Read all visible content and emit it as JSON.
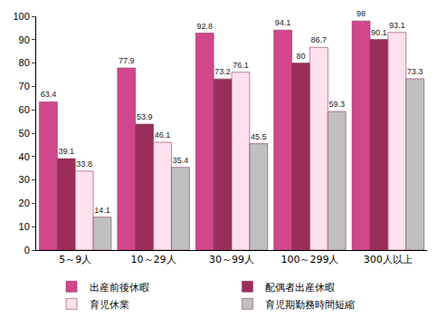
{
  "chart_data": {
    "type": "bar",
    "categories": [
      "5～9人",
      "10～29人",
      "30～99人",
      "100～299人",
      "300人以上"
    ],
    "series": [
      {
        "name": "出産前後休暇",
        "color": "#d2468c",
        "values": [
          63.4,
          77.9,
          92.8,
          94.1,
          98
        ]
      },
      {
        "name": "配偶者出産休暇",
        "color": "#9b2d5a",
        "values": [
          39.1,
          53.9,
          73.2,
          80,
          90.1
        ]
      },
      {
        "name": "育児休業",
        "color": "#ffe0ee",
        "values": [
          33.8,
          46.1,
          76.1,
          86.7,
          93.1
        ]
      },
      {
        "name": "育児期勤務時間短縮",
        "color": "#c0c0c0",
        "values": [
          14.1,
          35.4,
          45.5,
          59.3,
          73.3
        ]
      }
    ],
    "ylim": [
      0,
      100
    ],
    "yticks": [
      0,
      10,
      20,
      30,
      40,
      50,
      60,
      70,
      80,
      90,
      100
    ],
    "grid": false,
    "legend": "bottom",
    "data_labels": true
  }
}
